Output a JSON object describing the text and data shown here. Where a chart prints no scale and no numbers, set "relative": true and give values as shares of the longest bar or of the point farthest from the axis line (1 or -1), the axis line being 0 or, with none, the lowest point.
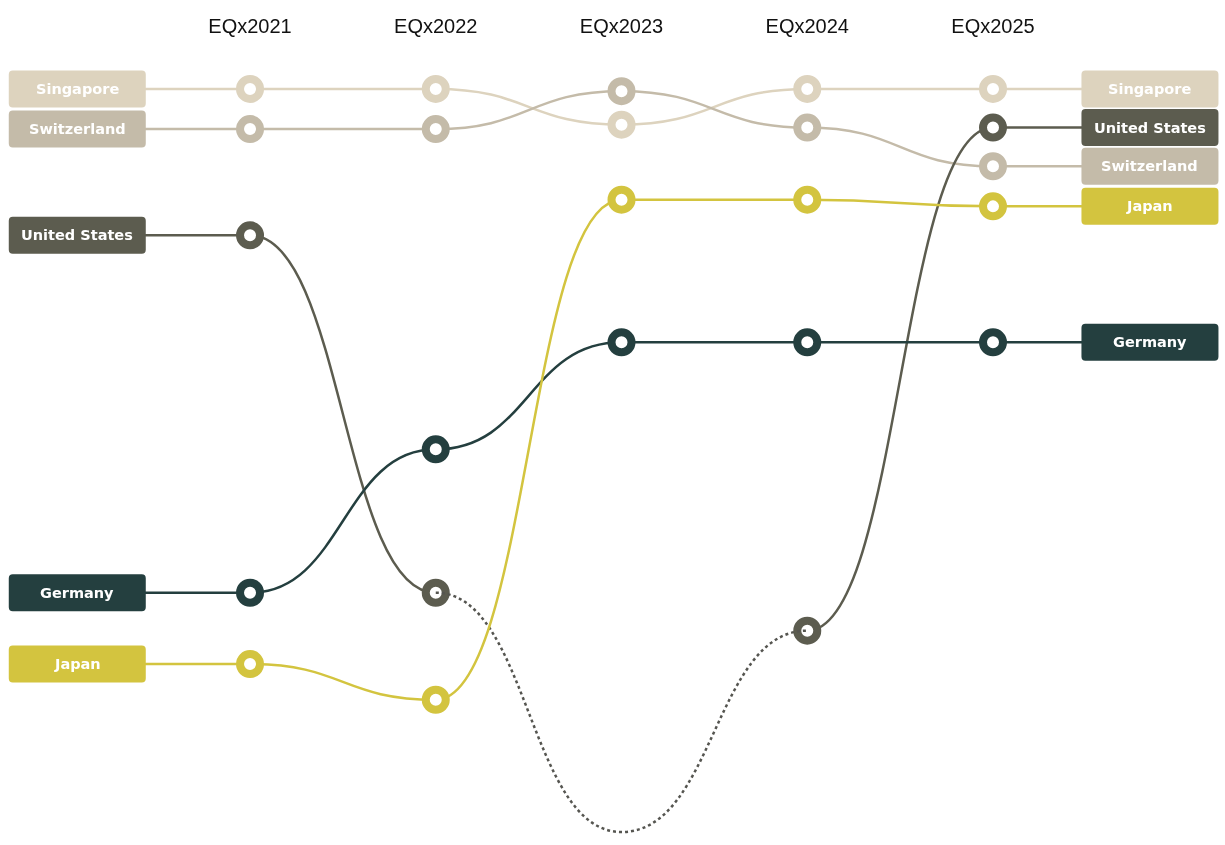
{
  "chart_data": {
    "type": "line",
    "relative": true,
    "marker": "circle",
    "line_style": "solid",
    "categories": [
      "EQx2021",
      "EQx2022",
      "EQx2023",
      "EQx2024",
      "EQx2025"
    ],
    "series": [
      {
        "name": "Singapore",
        "color": "#ddd3be",
        "values": [
          1,
          1,
          0.952,
          1,
          1
        ]
      },
      {
        "name": "Switzerland",
        "color": "#c4bba9",
        "values": [
          0.946,
          0.946,
          0.997,
          0.948,
          0.896
        ]
      },
      {
        "name": "United States",
        "color": "#5c5c4f",
        "values": [
          0.803,
          0.322,
          null,
          0.271,
          0.948
        ]
      },
      {
        "color": "#555550",
        "line_style": "dotted",
        "marker": "none",
        "values": [
          null,
          0.322,
          0,
          0.271,
          null
        ]
      },
      {
        "name": "Germany",
        "color": "#243f3f",
        "values": [
          0.322,
          0.515,
          0.659,
          0.659,
          0.659
        ]
      },
      {
        "name": "Japan",
        "color": "#d3c43f",
        "values": [
          0.226,
          0.178,
          0.851,
          0.851,
          0.842
        ]
      }
    ]
  }
}
